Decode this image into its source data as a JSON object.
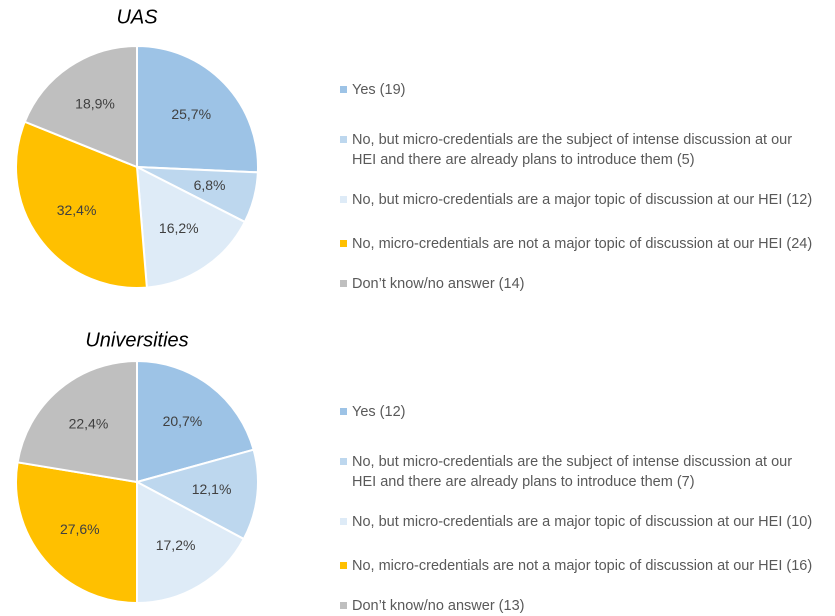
{
  "chart_data": [
    {
      "type": "pie",
      "title": "UAS",
      "categories": [
        "Yes (19)",
        "No, but micro-credentials are the subject of intense discussion at our HEI and there are already plans to introduce them (5)",
        "No, but micro-credentials are a major topic of discussion at our HEI (12)",
        "No, micro-credentials are not a major topic of discussion at our HEI (24)",
        "Don’t know/no answer (14)"
      ],
      "values": [
        25.7,
        6.8,
        16.2,
        32.4,
        18.9
      ],
      "value_labels": [
        "25,7%",
        "6,8%",
        "16,2%",
        "32,4%",
        "18,9%"
      ],
      "colors": [
        "#9dc3e6",
        "#bdd7ee",
        "#deebf7",
        "#ffc000",
        "#bfbfbf"
      ]
    },
    {
      "type": "pie",
      "title": "Universities",
      "categories": [
        "Yes (12)",
        "No, but micro-credentials are the subject of intense discussion at our HEI and there are already plans to introduce them (7)",
        "No, but micro-credentials are a major topic of discussion at our HEI (10)",
        "No, micro-credentials are not a major topic of discussion at our HEI (16)",
        "Don’t know/no answer (13)"
      ],
      "values": [
        20.7,
        12.1,
        17.2,
        27.6,
        22.4
      ],
      "value_labels": [
        "20,7%",
        "12,1%",
        "17,2%",
        "27,6%",
        "22,4%"
      ],
      "colors": [
        "#9dc3e6",
        "#bdd7ee",
        "#deebf7",
        "#ffc000",
        "#bfbfbf"
      ]
    }
  ]
}
